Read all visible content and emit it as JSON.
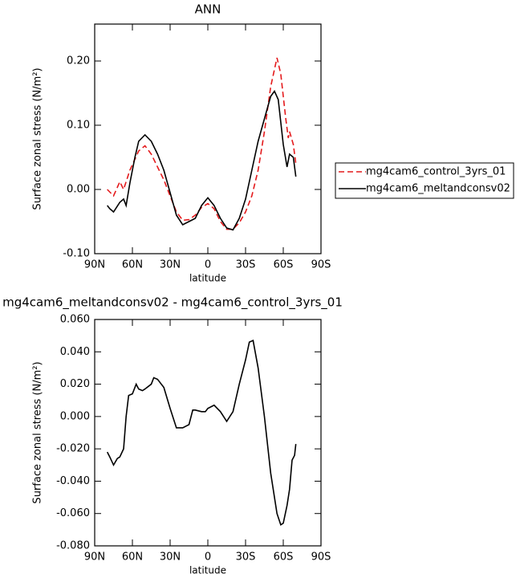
{
  "chart_data": [
    {
      "type": "line",
      "title": "ANN",
      "x_label": "latitude",
      "y_label": "Surface zonal stress (N/m²)",
      "xlim": [
        90,
        -90
      ],
      "ylim": [
        -0.1,
        0.2575
      ],
      "xticks": [
        {
          "value": 90,
          "label": "90N"
        },
        {
          "value": 60,
          "label": "60N"
        },
        {
          "value": 30,
          "label": "30N"
        },
        0,
        {
          "value": -30,
          "label": "30S"
        },
        {
          "value": -60,
          "label": "60S"
        },
        {
          "value": -90,
          "label": "90S"
        }
      ],
      "yticks": [
        {
          "value": -0.1,
          "label": "-0.10"
        },
        {
          "value": 0,
          "label": "0.00"
        },
        {
          "value": 0.1,
          "label": "0.10"
        },
        {
          "value": 0.2,
          "label": "0.20"
        }
      ],
      "legend": "right",
      "series": [
        {
          "name": "mg4cam6_control_3yrs_01",
          "color": "#e41a1c",
          "line_style": "dashed",
          "x": [
            80,
            75,
            70,
            67,
            62,
            55,
            50,
            45,
            40,
            35,
            30,
            25,
            20,
            15,
            10,
            5,
            0,
            -5,
            -10,
            -15,
            -20,
            -25,
            -30,
            -35,
            -40,
            -45,
            -50,
            -55,
            -58,
            -62,
            -64,
            -65,
            -68,
            -70
          ],
          "values": [
            0.0,
            -0.01,
            0.012,
            0.0,
            0.03,
            0.06,
            0.068,
            0.055,
            0.035,
            0.015,
            -0.01,
            -0.035,
            -0.048,
            -0.047,
            -0.04,
            -0.028,
            -0.022,
            -0.03,
            -0.05,
            -0.062,
            -0.062,
            -0.052,
            -0.035,
            -0.01,
            0.03,
            0.09,
            0.16,
            0.205,
            0.18,
            0.11,
            0.08,
            0.09,
            0.07,
            0.04
          ]
        },
        {
          "name": "mg4cam6_meltandconsv02",
          "color": "#000000",
          "line_style": "solid",
          "x": [
            80,
            78,
            75,
            70,
            67,
            65,
            62,
            58,
            55,
            50,
            45,
            40,
            35,
            30,
            25,
            20,
            15,
            10,
            5,
            0,
            -5,
            -10,
            -15,
            -20,
            -25,
            -30,
            -35,
            -40,
            -45,
            -50,
            -53,
            -56,
            -60,
            -63,
            -65,
            -68,
            -70
          ],
          "values": [
            -0.025,
            -0.03,
            -0.035,
            -0.02,
            -0.015,
            -0.025,
            0.01,
            0.05,
            0.075,
            0.085,
            0.075,
            0.055,
            0.03,
            -0.005,
            -0.04,
            -0.055,
            -0.05,
            -0.045,
            -0.025,
            -0.013,
            -0.025,
            -0.045,
            -0.06,
            -0.063,
            -0.045,
            -0.015,
            0.03,
            0.075,
            0.11,
            0.145,
            0.153,
            0.14,
            0.07,
            0.035,
            0.055,
            0.05,
            0.02
          ]
        }
      ]
    },
    {
      "type": "line",
      "title": "mg4cam6_meltandconsv02 - mg4cam6_control_3yrs_01",
      "x_label": "latitude",
      "y_label": "Surface zonal stress (N/m²)",
      "xlim": [
        90,
        -90
      ],
      "ylim": [
        -0.08,
        0.06
      ],
      "xticks": [
        {
          "value": 90,
          "label": "90N"
        },
        {
          "value": 60,
          "label": "60N"
        },
        {
          "value": 30,
          "label": "30N"
        },
        0,
        {
          "value": -30,
          "label": "30S"
        },
        {
          "value": -60,
          "label": "60S"
        },
        {
          "value": -90,
          "label": "90S"
        }
      ],
      "yticks": [
        {
          "value": -0.08,
          "label": "-0.080"
        },
        {
          "value": -0.06,
          "label": "-0.060"
        },
        {
          "value": -0.04,
          "label": "-0.040"
        },
        {
          "value": -0.02,
          "label": "-0.020"
        },
        {
          "value": 0,
          "label": "0.000"
        },
        {
          "value": 0.02,
          "label": "0.020"
        },
        {
          "value": 0.04,
          "label": "0.040"
        },
        {
          "value": 0.06,
          "label": "0.060"
        }
      ],
      "series": [
        {
          "color": "#000000",
          "line_style": "solid",
          "x": [
            80,
            78,
            75,
            72,
            70,
            67,
            65,
            63,
            60,
            57,
            55,
            52,
            50,
            45,
            43,
            40,
            35,
            30,
            25,
            20,
            15,
            12,
            10,
            5,
            2,
            0,
            -5,
            -10,
            -15,
            -20,
            -25,
            -30,
            -33,
            -36,
            -40,
            -45,
            -50,
            -55,
            -58,
            -60,
            -63,
            -65,
            -67,
            -69,
            -70
          ],
          "values": [
            -0.022,
            -0.025,
            -0.03,
            -0.026,
            -0.025,
            -0.02,
            0.0,
            0.013,
            0.014,
            0.02,
            0.017,
            0.016,
            0.017,
            0.02,
            0.024,
            0.023,
            0.018,
            0.005,
            -0.007,
            -0.007,
            -0.005,
            0.004,
            0.004,
            0.003,
            0.003,
            0.005,
            0.007,
            0.003,
            -0.003,
            0.003,
            0.02,
            0.035,
            0.046,
            0.047,
            0.03,
            0.0,
            -0.035,
            -0.06,
            -0.067,
            -0.066,
            -0.055,
            -0.045,
            -0.027,
            -0.024,
            -0.017
          ]
        }
      ]
    }
  ]
}
